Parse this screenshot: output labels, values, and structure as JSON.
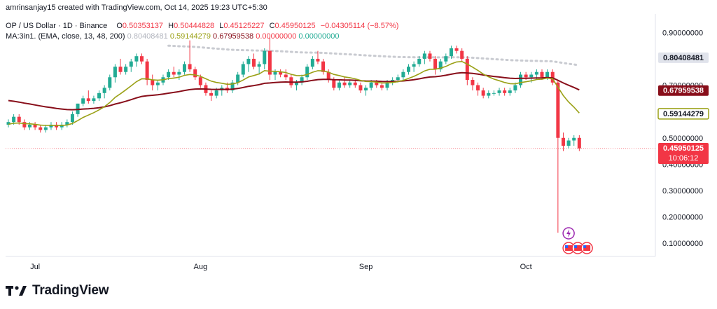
{
  "credit": "amrinsanjay15 created with TradingView.com, Oct 14, 2025 19:23 UTC+5:30",
  "legend": {
    "symbol": "OP / US Dollar · 1D · Binance",
    "o_label": "O",
    "o": "0.50353137",
    "h_label": "H",
    "h": "0.50444828",
    "l_label": "L",
    "l": "0.45125227",
    "c_label": "C",
    "c": "0.45950125",
    "change": "−0.04305114 (−8.57%)",
    "ma_title": "MA:3in1. (EMA, close, 13, 48, 200)",
    "ma200_value": "0.80408481",
    "ma13_value": "0.59144279",
    "ma48_value": "0.67959538",
    "extra1": "0.00000000",
    "extra2": "0.00000000"
  },
  "brand": "TradingView",
  "colors": {
    "up": "#22ab94",
    "down": "#f23645",
    "ma13": "#9aa015",
    "ma48": "#880e1a",
    "ma200": "#c9cbd1"
  },
  "chart_data": {
    "type": "candlestick",
    "ylim": [
      0.05,
      0.97
    ],
    "yticks": [
      "0.90000000",
      "0.80000000",
      "0.70000000",
      "0.60000000",
      "0.50000000",
      "0.40000000",
      "0.30000000",
      "0.20000000",
      "0.10000000"
    ],
    "ytick_values": [
      0.9,
      0.8,
      0.7,
      0.6,
      0.5,
      0.4,
      0.3,
      0.2,
      0.1
    ],
    "xticks": [
      {
        "label": "Jul",
        "index": 5
      },
      {
        "label": "Aug",
        "index": 36
      },
      {
        "label": "Sep",
        "index": 67
      },
      {
        "label": "Oct",
        "index": 97
      }
    ],
    "price_labels": [
      {
        "value": 0.80408481,
        "text": "0.80408481",
        "style": "ma200"
      },
      {
        "value": 0.67959538,
        "text": "0.67959538",
        "style": "ma48"
      },
      {
        "value": 0.59144279,
        "text": "0.59144279",
        "style": "ma13"
      },
      {
        "value": 0.45950125,
        "text": "0.45950125",
        "style": "last",
        "sub": "10:06:12"
      }
    ],
    "candles": [
      [
        0.55,
        0.57,
        0.54,
        0.56
      ],
      [
        0.56,
        0.59,
        0.55,
        0.58
      ],
      [
        0.58,
        0.59,
        0.55,
        0.56
      ],
      [
        0.56,
        0.57,
        0.53,
        0.54
      ],
      [
        0.54,
        0.56,
        0.53,
        0.55
      ],
      [
        0.55,
        0.56,
        0.53,
        0.54
      ],
      [
        0.54,
        0.55,
        0.52,
        0.53
      ],
      [
        0.53,
        0.55,
        0.52,
        0.54
      ],
      [
        0.54,
        0.56,
        0.53,
        0.55
      ],
      [
        0.55,
        0.56,
        0.53,
        0.54
      ],
      [
        0.54,
        0.56,
        0.53,
        0.55
      ],
      [
        0.55,
        0.57,
        0.54,
        0.56
      ],
      [
        0.56,
        0.6,
        0.55,
        0.59
      ],
      [
        0.59,
        0.63,
        0.58,
        0.63
      ],
      [
        0.63,
        0.66,
        0.62,
        0.65
      ],
      [
        0.65,
        0.68,
        0.63,
        0.64
      ],
      [
        0.64,
        0.66,
        0.63,
        0.65
      ],
      [
        0.65,
        0.68,
        0.64,
        0.67
      ],
      [
        0.67,
        0.7,
        0.65,
        0.69
      ],
      [
        0.69,
        0.74,
        0.68,
        0.73
      ],
      [
        0.73,
        0.78,
        0.71,
        0.77
      ],
      [
        0.77,
        0.8,
        0.74,
        0.75
      ],
      [
        0.75,
        0.78,
        0.74,
        0.77
      ],
      [
        0.77,
        0.8,
        0.75,
        0.79
      ],
      [
        0.79,
        0.82,
        0.77,
        0.81
      ],
      [
        0.81,
        0.82,
        0.78,
        0.79
      ],
      [
        0.79,
        0.8,
        0.7,
        0.72
      ],
      [
        0.72,
        0.74,
        0.68,
        0.7
      ],
      [
        0.7,
        0.72,
        0.68,
        0.71
      ],
      [
        0.71,
        0.74,
        0.7,
        0.73
      ],
      [
        0.73,
        0.76,
        0.72,
        0.75
      ],
      [
        0.75,
        0.77,
        0.73,
        0.74
      ],
      [
        0.74,
        0.76,
        0.72,
        0.75
      ],
      [
        0.75,
        0.79,
        0.74,
        0.78
      ],
      [
        0.78,
        0.87,
        0.75,
        0.76
      ],
      [
        0.76,
        0.77,
        0.72,
        0.73
      ],
      [
        0.73,
        0.74,
        0.69,
        0.7
      ],
      [
        0.7,
        0.71,
        0.66,
        0.67
      ],
      [
        0.67,
        0.68,
        0.64,
        0.66
      ],
      [
        0.66,
        0.69,
        0.65,
        0.68
      ],
      [
        0.68,
        0.7,
        0.66,
        0.69
      ],
      [
        0.69,
        0.71,
        0.67,
        0.68
      ],
      [
        0.68,
        0.72,
        0.67,
        0.71
      ],
      [
        0.71,
        0.75,
        0.7,
        0.74
      ],
      [
        0.74,
        0.79,
        0.73,
        0.78
      ],
      [
        0.78,
        0.81,
        0.75,
        0.8
      ],
      [
        0.8,
        0.82,
        0.76,
        0.77
      ],
      [
        0.77,
        0.79,
        0.74,
        0.78
      ],
      [
        0.78,
        0.84,
        0.76,
        0.83
      ],
      [
        0.83,
        0.88,
        0.72,
        0.74
      ],
      [
        0.74,
        0.76,
        0.72,
        0.75
      ],
      [
        0.75,
        0.76,
        0.73,
        0.74
      ],
      [
        0.74,
        0.76,
        0.72,
        0.73
      ],
      [
        0.73,
        0.74,
        0.69,
        0.7
      ],
      [
        0.7,
        0.72,
        0.68,
        0.71
      ],
      [
        0.71,
        0.74,
        0.7,
        0.73
      ],
      [
        0.73,
        0.78,
        0.72,
        0.77
      ],
      [
        0.77,
        0.81,
        0.76,
        0.8
      ],
      [
        0.8,
        0.83,
        0.78,
        0.79
      ],
      [
        0.79,
        0.8,
        0.74,
        0.75
      ],
      [
        0.75,
        0.76,
        0.71,
        0.72
      ],
      [
        0.72,
        0.73,
        0.68,
        0.69
      ],
      [
        0.69,
        0.72,
        0.68,
        0.71
      ],
      [
        0.71,
        0.73,
        0.69,
        0.7
      ],
      [
        0.7,
        0.72,
        0.69,
        0.71
      ],
      [
        0.71,
        0.72,
        0.69,
        0.7
      ],
      [
        0.7,
        0.71,
        0.67,
        0.68
      ],
      [
        0.68,
        0.7,
        0.66,
        0.69
      ],
      [
        0.69,
        0.72,
        0.68,
        0.71
      ],
      [
        0.71,
        0.72,
        0.69,
        0.7
      ],
      [
        0.7,
        0.71,
        0.68,
        0.69
      ],
      [
        0.69,
        0.72,
        0.68,
        0.71
      ],
      [
        0.71,
        0.73,
        0.7,
        0.72
      ],
      [
        0.72,
        0.74,
        0.71,
        0.73
      ],
      [
        0.73,
        0.76,
        0.72,
        0.75
      ],
      [
        0.75,
        0.78,
        0.74,
        0.77
      ],
      [
        0.77,
        0.79,
        0.75,
        0.78
      ],
      [
        0.78,
        0.81,
        0.77,
        0.8
      ],
      [
        0.8,
        0.83,
        0.78,
        0.82
      ],
      [
        0.82,
        0.83,
        0.79,
        0.8
      ],
      [
        0.8,
        0.81,
        0.74,
        0.76
      ],
      [
        0.76,
        0.8,
        0.75,
        0.79
      ],
      [
        0.79,
        0.82,
        0.78,
        0.81
      ],
      [
        0.81,
        0.85,
        0.8,
        0.84
      ],
      [
        0.84,
        0.85,
        0.82,
        0.83
      ],
      [
        0.83,
        0.84,
        0.79,
        0.8
      ],
      [
        0.8,
        0.81,
        0.7,
        0.72
      ],
      [
        0.72,
        0.73,
        0.68,
        0.7
      ],
      [
        0.7,
        0.71,
        0.66,
        0.68
      ],
      [
        0.68,
        0.69,
        0.65,
        0.66
      ],
      [
        0.66,
        0.68,
        0.65,
        0.67
      ],
      [
        0.67,
        0.68,
        0.66,
        0.67
      ],
      [
        0.67,
        0.69,
        0.66,
        0.68
      ],
      [
        0.68,
        0.69,
        0.66,
        0.67
      ],
      [
        0.67,
        0.69,
        0.66,
        0.68
      ],
      [
        0.68,
        0.71,
        0.67,
        0.7
      ],
      [
        0.7,
        0.75,
        0.69,
        0.74
      ],
      [
        0.74,
        0.75,
        0.72,
        0.73
      ],
      [
        0.73,
        0.75,
        0.71,
        0.74
      ],
      [
        0.74,
        0.76,
        0.72,
        0.75
      ],
      [
        0.75,
        0.76,
        0.72,
        0.73
      ],
      [
        0.73,
        0.76,
        0.72,
        0.75
      ],
      [
        0.75,
        0.76,
        0.7,
        0.71
      ],
      [
        0.71,
        0.72,
        0.14,
        0.5
      ],
      [
        0.5,
        0.52,
        0.45,
        0.47
      ],
      [
        0.47,
        0.5,
        0.46,
        0.49
      ],
      [
        0.49,
        0.51,
        0.47,
        0.5
      ],
      [
        0.5,
        0.51,
        0.45,
        0.46
      ]
    ]
  }
}
